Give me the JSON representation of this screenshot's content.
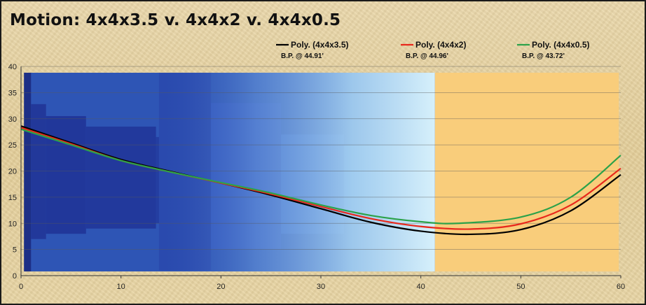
{
  "chart_data": {
    "type": "line",
    "title": "Motion: 4x4x3.5 v. 4x4x2 v. 4x4x0.5",
    "xlim": [
      0,
      60
    ],
    "ylim": [
      0,
      40
    ],
    "xticks": [
      0,
      10,
      20,
      30,
      40,
      50,
      60
    ],
    "yticks": [
      0,
      5,
      10,
      15,
      20,
      25,
      30,
      35,
      40
    ],
    "grid": true,
    "legend_placement": "top-right",
    "background_image": "blue stepped field image behind left portion of plot, orange-tan field on right",
    "series": [
      {
        "name": "Poly. (4x4x3.5)",
        "annotation": "B.P. @ 44.91'",
        "color": "#000000",
        "x": [
          0,
          5,
          10,
          15,
          20,
          25,
          30,
          35,
          40,
          44.91,
          50,
          55,
          60
        ],
        "y": [
          28.6,
          25.4,
          22.2,
          19.9,
          17.7,
          15.4,
          12.8,
          10.2,
          8.5,
          7.9,
          8.8,
          12.4,
          19.3
        ]
      },
      {
        "name": "Poly. (4x4x2)",
        "annotation": "B.P. @ 44.96'",
        "color": "#e8281c",
        "x": [
          0,
          5,
          10,
          15,
          20,
          25,
          30,
          35,
          40,
          44.96,
          50,
          55,
          60
        ],
        "y": [
          28.3,
          25.2,
          22.0,
          19.8,
          17.7,
          15.6,
          13.2,
          10.9,
          9.4,
          8.9,
          9.9,
          13.5,
          20.5
        ]
      },
      {
        "name": "Poly. (4x4x0.5)",
        "annotation": "B.P. @ 43.72'",
        "color": "#2ca24a",
        "x": [
          0,
          5,
          10,
          15,
          20,
          25,
          30,
          35,
          40,
          43.72,
          50,
          55,
          60
        ],
        "y": [
          28.0,
          25.0,
          22.0,
          19.8,
          17.8,
          15.8,
          13.5,
          11.5,
          10.3,
          10.0,
          11.2,
          15.0,
          23.0
        ]
      }
    ]
  }
}
